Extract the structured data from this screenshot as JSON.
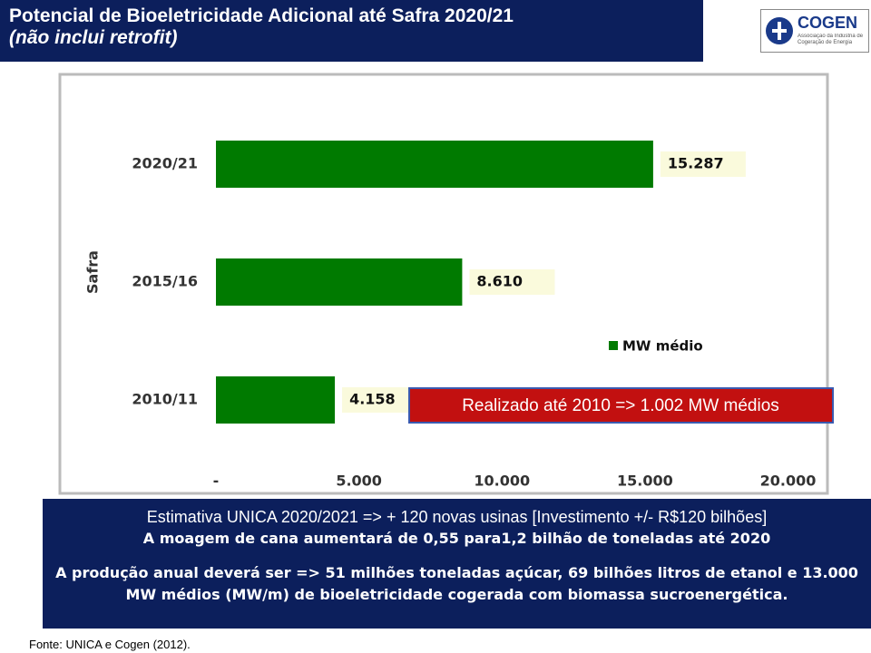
{
  "header": {
    "title": "Potencial de Bioeletricidade Adicional até Safra 2020/21",
    "subtitle": "(não inclui retrofit)"
  },
  "logo": {
    "name": "COGEN",
    "tagline": "Associação da Indústria de Cogeração de Energia"
  },
  "chart_data": {
    "type": "hbar",
    "ylabel": "Safra",
    "categories": [
      "2010/11",
      "2015/16",
      "2020/21"
    ],
    "series": [
      {
        "name": "MW médio",
        "color": "#007a00",
        "values": [
          4158,
          8610,
          15287
        ],
        "value_labels": [
          "4.158",
          "8.610",
          "15.287"
        ]
      }
    ],
    "xlim": [
      0,
      21000
    ],
    "xticks": [
      {
        "value": 0,
        "label": "-"
      },
      {
        "value": 5000,
        "label": "5.000"
      },
      {
        "value": 10000,
        "label": "10.000"
      },
      {
        "value": 15000,
        "label": "15.000"
      },
      {
        "value": 20000,
        "label": "20.000"
      }
    ],
    "annotation": "Realizado até 2010 => 1.002 MW médios"
  },
  "notes": [
    "Estimativa UNICA 2020/2021 => + 120 novas usinas [Investimento +/-  R$120 bilhões]",
    "A moagem de cana aumentará de 0,55 para1,2 bilhão de toneladas até 2020",
    "A produção anual deverá ser => 51 milhões toneladas açúcar, 69 bilhões litros de etanol e 13.000 MW médios (MW/m) de bioeletricidade cogerada com biomassa sucroenergética."
  ],
  "source": "Fonte: UNICA e Cogen (2012)."
}
